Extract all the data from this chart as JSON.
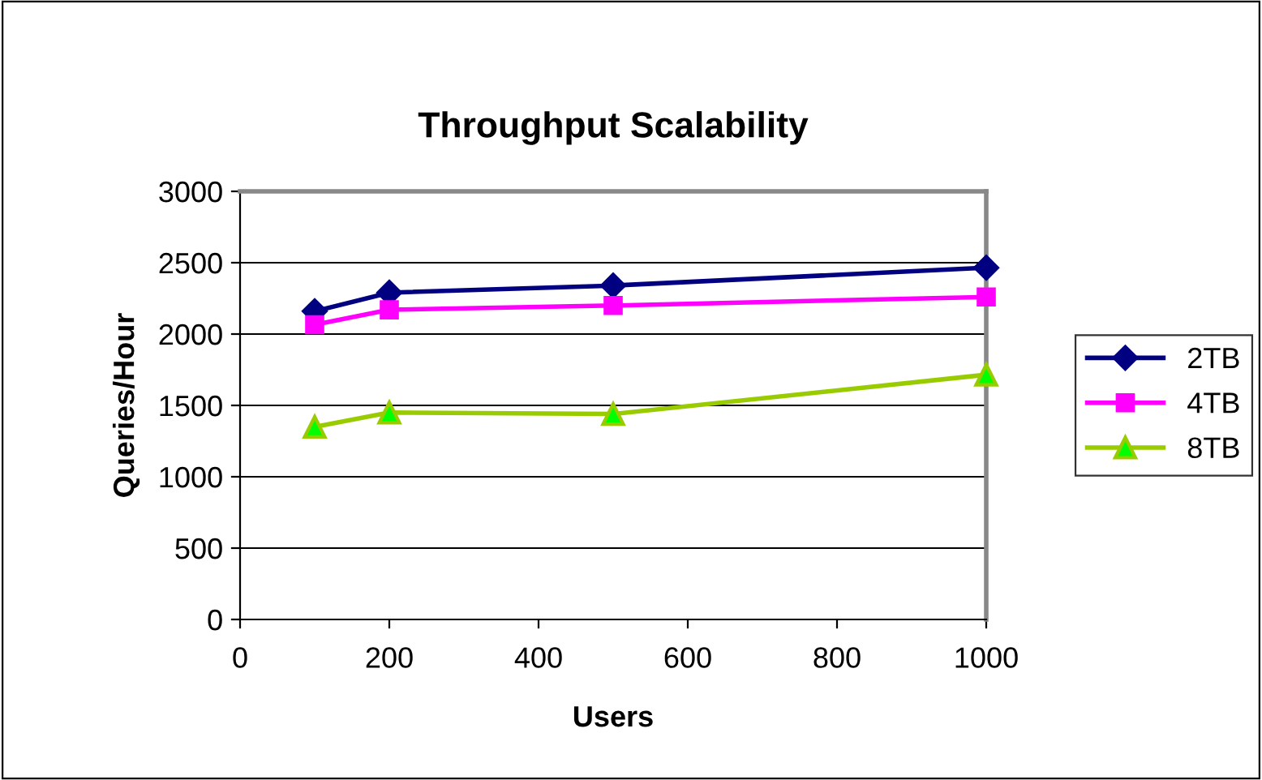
{
  "chart_data": {
    "type": "line",
    "title": "Throughput Scalability",
    "xlabel": "Users",
    "ylabel": "Queries/Hour",
    "x": [
      100,
      200,
      500,
      1000
    ],
    "series": [
      {
        "name": "2TB",
        "color": "#000080",
        "marker": "diamond",
        "values": [
          2160,
          2290,
          2340,
          2465
        ]
      },
      {
        "name": "4TB",
        "color": "#ff00ff",
        "marker": "square",
        "values": [
          2065,
          2170,
          2200,
          2260
        ]
      },
      {
        "name": "8TB",
        "color": "#99cc00",
        "marker": "triangle",
        "values": [
          1350,
          1450,
          1440,
          1715
        ]
      }
    ],
    "xlim": [
      0,
      1000
    ],
    "xticks": [
      0,
      200,
      400,
      600,
      800,
      1000
    ],
    "ylim": [
      0,
      3000
    ],
    "yticks": [
      0,
      500,
      1000,
      1500,
      2000,
      2500,
      3000
    ],
    "grid": "y",
    "legend": "right",
    "line_style": "solid"
  }
}
